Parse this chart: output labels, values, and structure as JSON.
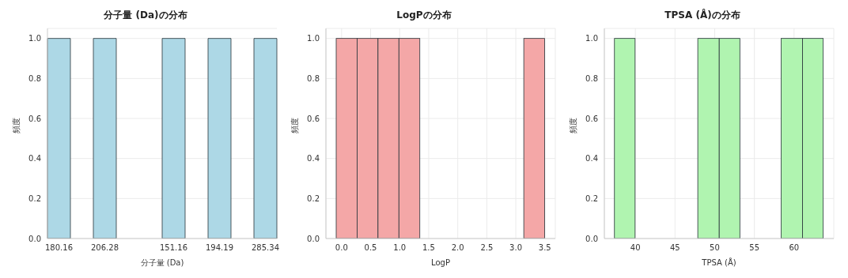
{
  "chart_data": [
    {
      "type": "bar",
      "title": "分子量 (Da)の分布",
      "xlabel": "分子量 (Da)",
      "ylabel": "頻度",
      "categories": [
        "180.16",
        null,
        "206.28",
        null,
        null,
        "151.16",
        null,
        "194.19",
        null,
        "285.34"
      ],
      "values": [
        1,
        0,
        1,
        0,
        0,
        1,
        0,
        1,
        0,
        1
      ],
      "color": "#add8e6",
      "ylim": [
        0,
        1.05
      ],
      "yticks": [
        {
          "value": 0,
          "label": "0.0"
        },
        {
          "value": 0.2,
          "label": "0.2"
        },
        {
          "value": 0.4,
          "label": "0.4"
        },
        {
          "value": 0.6,
          "label": "0.6"
        },
        {
          "value": 0.8,
          "label": "0.8"
        },
        {
          "value": 1,
          "label": "1.0"
        }
      ],
      "grid": "y"
    },
    {
      "type": "histogram",
      "title": "LogPの分布",
      "xlabel": "LogP",
      "ylabel": "頻度",
      "bins": [
        -0.09,
        0.27,
        0.63,
        0.99,
        1.35,
        3.14,
        3.5
      ],
      "values": [
        1,
        1,
        1,
        1,
        0,
        1
      ],
      "color": "#f4a7a7",
      "xlim": [
        -0.27,
        3.68
      ],
      "xticks": [
        {
          "value": 0,
          "label": "0.0"
        },
        {
          "value": 0.5,
          "label": "0.5"
        },
        {
          "value": 1,
          "label": "1.0"
        },
        {
          "value": 1.5,
          "label": "1.5"
        },
        {
          "value": 2,
          "label": "2.0"
        },
        {
          "value": 2.5,
          "label": "2.5"
        },
        {
          "value": 3,
          "label": "3.0"
        },
        {
          "value": 3.5,
          "label": "3.5"
        }
      ],
      "ylim": [
        0,
        1.05
      ],
      "yticks": [
        {
          "value": 0,
          "label": "0.0"
        },
        {
          "value": 0.2,
          "label": "0.2"
        },
        {
          "value": 0.4,
          "label": "0.4"
        },
        {
          "value": 0.6,
          "label": "0.6"
        },
        {
          "value": 0.8,
          "label": "0.8"
        },
        {
          "value": 1,
          "label": "1.0"
        }
      ],
      "grid": true
    },
    {
      "type": "histogram",
      "title": "TPSA (Å)の分布",
      "xlabel": "TPSA (Å)",
      "ylabel": "頻度",
      "bins": [
        37.4,
        40.0,
        47.9,
        50.6,
        53.2,
        58.4,
        61.1,
        63.7
      ],
      "values": [
        1,
        0,
        1,
        1,
        0,
        1,
        1
      ],
      "color": "#b0f4b0",
      "xlim": [
        36.1,
        65.0
      ],
      "xticks": [
        40,
        45,
        50,
        55,
        60
      ],
      "ylim": [
        0,
        1.05
      ],
      "yticks": [
        {
          "value": 0,
          "label": "0.0"
        },
        {
          "value": 0.2,
          "label": "0.2"
        },
        {
          "value": 0.4,
          "label": "0.4"
        },
        {
          "value": 0.6,
          "label": "0.6"
        },
        {
          "value": 0.8,
          "label": "0.8"
        },
        {
          "value": 1,
          "label": "1.0"
        }
      ],
      "grid": true
    }
  ]
}
